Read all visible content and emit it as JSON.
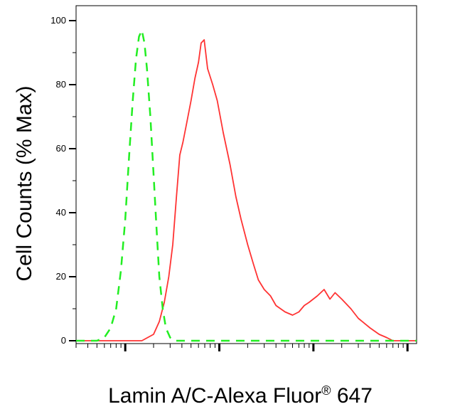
{
  "chart_data": {
    "type": "line",
    "xlabel": "Lamin A/C-Alexa Fluor",
    "xlabel_mark": "®",
    "xlabel_suffix": " 647",
    "ylabel": "Cell Counts (% Max)",
    "x_scale": "log",
    "xlim": [
      0.3,
      1250
    ],
    "ylim": [
      0,
      105
    ],
    "y_ticks": [
      0,
      20,
      40,
      60,
      80,
      100
    ],
    "x_major_ticks": [
      1,
      10,
      100,
      1000
    ],
    "grid": false,
    "legend": "none",
    "series": [
      {
        "color": "#ff3333",
        "style": "solid",
        "points": [
          [
            0.3,
            0
          ],
          [
            1.5,
            0
          ],
          [
            2.0,
            2
          ],
          [
            2.3,
            6
          ],
          [
            2.6,
            12
          ],
          [
            2.9,
            20
          ],
          [
            3.2,
            30
          ],
          [
            3.5,
            45
          ],
          [
            3.8,
            58
          ],
          [
            4.1,
            62
          ],
          [
            4.5,
            68
          ],
          [
            5.0,
            75
          ],
          [
            5.5,
            82
          ],
          [
            6.0,
            87
          ],
          [
            6.4,
            93
          ],
          [
            6.9,
            94
          ],
          [
            7.5,
            85
          ],
          [
            8.5,
            80
          ],
          [
            9.5,
            75
          ],
          [
            11,
            65
          ],
          [
            13,
            55
          ],
          [
            15,
            45
          ],
          [
            17,
            38
          ],
          [
            20,
            30
          ],
          [
            23,
            24
          ],
          [
            26,
            19
          ],
          [
            30,
            16
          ],
          [
            35,
            14
          ],
          [
            40,
            11
          ],
          [
            50,
            9
          ],
          [
            60,
            8
          ],
          [
            70,
            9
          ],
          [
            80,
            11
          ],
          [
            90,
            12
          ],
          [
            110,
            14
          ],
          [
            130,
            16
          ],
          [
            150,
            13
          ],
          [
            170,
            15
          ],
          [
            200,
            13
          ],
          [
            250,
            10
          ],
          [
            300,
            7
          ],
          [
            400,
            4
          ],
          [
            500,
            2
          ],
          [
            600,
            1
          ],
          [
            700,
            0
          ],
          [
            1250,
            0
          ]
        ]
      },
      {
        "color": "#22ee22",
        "style": "dashed",
        "points": [
          [
            0.3,
            0
          ],
          [
            0.5,
            0
          ],
          [
            0.6,
            1
          ],
          [
            0.7,
            4
          ],
          [
            0.8,
            10
          ],
          [
            0.9,
            22
          ],
          [
            1.0,
            38
          ],
          [
            1.1,
            58
          ],
          [
            1.2,
            75
          ],
          [
            1.3,
            88
          ],
          [
            1.4,
            95
          ],
          [
            1.5,
            97
          ],
          [
            1.6,
            93
          ],
          [
            1.7,
            85
          ],
          [
            1.85,
            70
          ],
          [
            2.0,
            52
          ],
          [
            2.15,
            35
          ],
          [
            2.3,
            20
          ],
          [
            2.5,
            10
          ],
          [
            2.7,
            4
          ],
          [
            3.0,
            1
          ],
          [
            3.3,
            0
          ],
          [
            1250,
            0
          ]
        ]
      }
    ]
  }
}
